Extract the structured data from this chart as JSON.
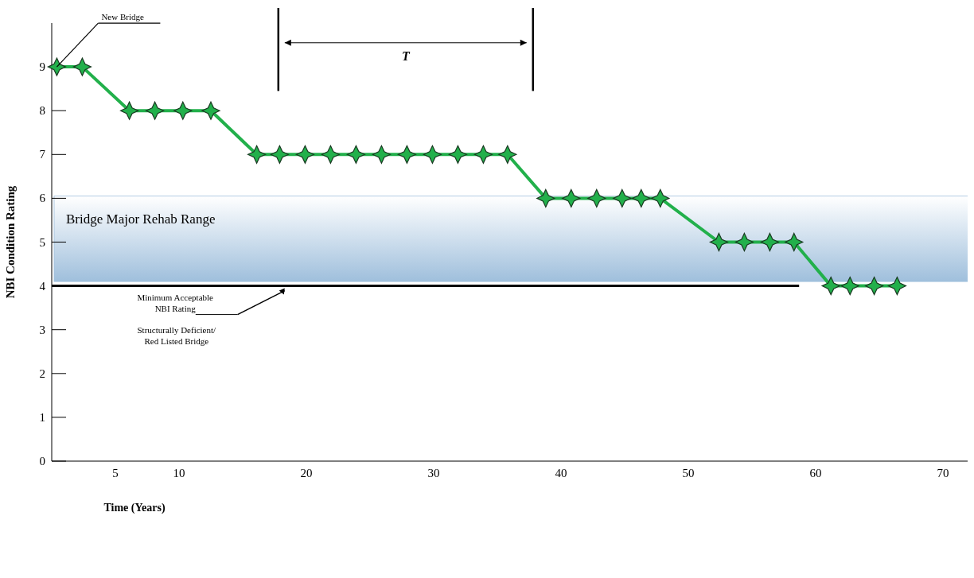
{
  "chart_data": {
    "type": "line",
    "xlabel": "Time (Years)",
    "ylabel": "NBI Condition Rating",
    "xlim": [
      0,
      72
    ],
    "ylim": [
      0,
      10
    ],
    "xticks": [
      5,
      10,
      20,
      30,
      40,
      50,
      60,
      70
    ],
    "yticks": [
      0,
      1,
      2,
      3,
      4,
      5,
      6,
      7,
      8,
      9
    ],
    "x": [
      0.4,
      2.4,
      6.1,
      8.1,
      10.3,
      12.5,
      16.1,
      17.9,
      19.9,
      21.9,
      23.9,
      25.9,
      27.9,
      29.9,
      31.9,
      33.9,
      35.8,
      38.8,
      40.8,
      42.8,
      44.8,
      46.3,
      47.8,
      52.4,
      54.4,
      56.4,
      58.3,
      61.2,
      62.7,
      64.6,
      66.4
    ],
    "series": [
      {
        "color": "#22b04b",
        "values": [
          9,
          9,
          8,
          8,
          8,
          8,
          7,
          7,
          7,
          7,
          7,
          7,
          7,
          7,
          7,
          7,
          7,
          6,
          6,
          6,
          6,
          6,
          6,
          5,
          5,
          5,
          5,
          4,
          4,
          4,
          4
        ]
      }
    ],
    "marker": "star",
    "line_style": "solid",
    "grid": false,
    "bands": [
      {
        "axis": "y",
        "from": 4.1,
        "to": 6.05,
        "label": "Bridge Major Rehab Range",
        "color": "#9fbfdc"
      }
    ],
    "ref_lines": [
      {
        "axis": "y",
        "value": 4,
        "label": "Minimum Acceptable NBI Rating",
        "color": "#000000"
      },
      {
        "axis": "x",
        "value": 17.8,
        "color": "#000000"
      },
      {
        "axis": "x",
        "value": 37.8,
        "color": "#000000"
      }
    ],
    "annotations": [
      {
        "text": "New Bridge",
        "x": 0.4,
        "y": 9
      },
      "Structurally Deficient/ Red Listed Bridge",
      "T"
    ]
  }
}
